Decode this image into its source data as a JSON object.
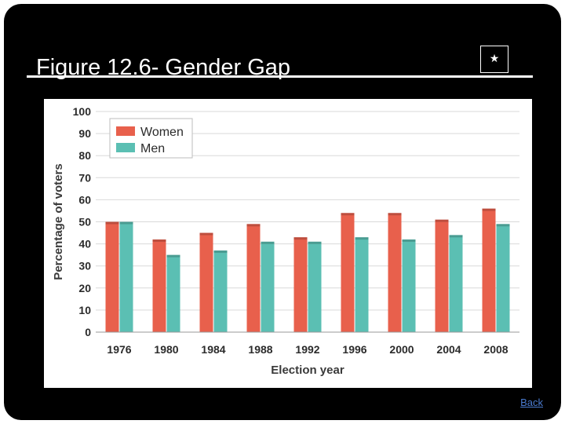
{
  "slide": {
    "title": "Figure 12.6- Gender Gap",
    "star_icon_glyph": "★",
    "back_label": "Back"
  },
  "chart_data": {
    "type": "bar",
    "title": "",
    "xlabel": "Election year",
    "ylabel": "Percentage of voters",
    "ylim": [
      0,
      100
    ],
    "yticks": [
      0,
      10,
      20,
      30,
      40,
      50,
      60,
      70,
      80,
      90,
      100
    ],
    "grid": true,
    "legend_position": "top-left",
    "categories": [
      "1976",
      "1980",
      "1984",
      "1988",
      "1992",
      "1996",
      "2000",
      "2004",
      "2008"
    ],
    "series": [
      {
        "name": "Women",
        "color": "#e8604c",
        "values": [
          50,
          42,
          45,
          49,
          43,
          54,
          54,
          51,
          56
        ]
      },
      {
        "name": "Men",
        "color": "#5bbfb3",
        "values": [
          50,
          35,
          37,
          41,
          41,
          43,
          42,
          44,
          49
        ]
      }
    ]
  }
}
